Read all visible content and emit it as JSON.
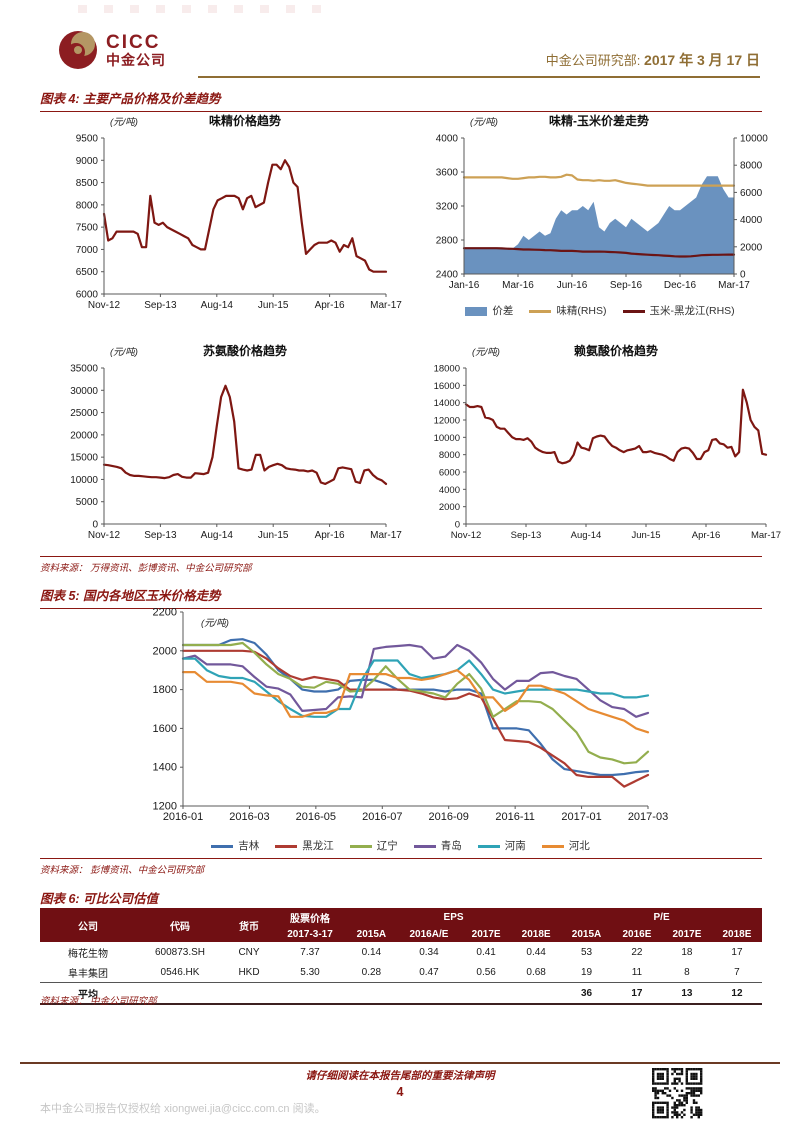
{
  "header": {
    "logo_en": "CICC",
    "logo_cn": "中金公司",
    "dept_label": "中金公司研究部:",
    "date": "2017 年 3 月 17 日"
  },
  "figure4": {
    "title": "图表 4: 主要产品价格及价差趋势",
    "source": "资料来源： 万得资讯、彭博资讯、中金公司研究部",
    "charts": [
      {
        "id": "msg-price",
        "title": "味精价格趋势",
        "unit": "(元/吨)",
        "ylim": [
          6000,
          9500
        ],
        "ystep": 500,
        "xticklabels": [
          "Nov-12",
          "Sep-13",
          "Aug-14",
          "Jun-15",
          "Apr-16",
          "Mar-17"
        ],
        "series": [
          {
            "name": "味精价格",
            "type": "line",
            "axis": "left",
            "color": "#7e1712",
            "values": [
              7800,
              7200,
              7250,
              7400,
              7400,
              7400,
              7400,
              7400,
              7350,
              7050,
              7050,
              8200,
              7600,
              7550,
              7600,
              7500,
              7450,
              7400,
              7350,
              7300,
              7250,
              7100,
              7050,
              7000,
              7000,
              7450,
              7900,
              8100,
              8150,
              8200,
              8200,
              8200,
              8150,
              7900,
              8150,
              8200,
              7950,
              8000,
              8050,
              8500,
              8900,
              8900,
              8800,
              9000,
              8850,
              8500,
              8400,
              7600,
              6900,
              7000,
              7100,
              7150,
              7150,
              7150,
              7200,
              7150,
              6950,
              7100,
              7050,
              7250,
              6850,
              6800,
              6750,
              6550,
              6500,
              6500,
              6500,
              6500
            ]
          }
        ]
      },
      {
        "id": "msg-corn-spread",
        "title": "味精-玉米价差走势",
        "unit": "(元/吨)",
        "ylim": [
          2400,
          4000
        ],
        "ystep": 400,
        "y2lim": [
          0,
          10000
        ],
        "y2step": 2000,
        "xticklabels": [
          "Jan-16",
          "Mar-16",
          "Jun-16",
          "Sep-16",
          "Dec-16",
          "Mar-17"
        ],
        "series": [
          {
            "name": "价差",
            "type": "area",
            "axis": "left",
            "color": "#6a92bf",
            "values": [
              2700,
              2700,
              2700,
              2700,
              2700,
              2700,
              2700,
              2700,
              2700,
              2700,
              2750,
              2850,
              2800,
              2850,
              2900,
              2850,
              2880,
              3050,
              3150,
              3100,
              3150,
              3150,
              3200,
              3150,
              3250,
              2950,
              2900,
              3000,
              3050,
              3000,
              2950,
              3050,
              3000,
              2950,
              2900,
              2950,
              3000,
              3100,
              3200,
              3150,
              3150,
              3200,
              3250,
              3300,
              3450,
              3550,
              3550,
              3550,
              3400,
              3300,
              3300
            ]
          },
          {
            "name": "味精(RHS)",
            "type": "line",
            "axis": "right",
            "color": "#cda155",
            "values": [
              7100,
              7100,
              7100,
              7100,
              7100,
              7100,
              7100,
              7100,
              7050,
              7000,
              7000,
              7050,
              7100,
              7100,
              7150,
              7150,
              7100,
              7100,
              7150,
              7300,
              7250,
              6950,
              6900,
              6900,
              6850,
              6900,
              6850,
              6850,
              6900,
              6800,
              6700,
              6650,
              6600,
              6550,
              6500,
              6500,
              6500,
              6500,
              6500,
              6500,
              6500,
              6500,
              6500,
              6500,
              6500,
              6500,
              6500,
              6500,
              6500,
              6500,
              6500
            ]
          },
          {
            "name": "玉米-黑龙江(RHS)",
            "type": "line",
            "axis": "right",
            "color": "#6b1414",
            "values": [
              1900,
              1900,
              1900,
              1900,
              1900,
              1900,
              1900,
              1880,
              1860,
              1850,
              1830,
              1800,
              1800,
              1790,
              1780,
              1760,
              1750,
              1730,
              1700,
              1700,
              1700,
              1680,
              1650,
              1650,
              1650,
              1650,
              1640,
              1620,
              1600,
              1580,
              1550,
              1500,
              1470,
              1440,
              1420,
              1400,
              1380,
              1350,
              1330,
              1300,
              1290,
              1290,
              1300,
              1340,
              1380,
              1400,
              1410,
              1410,
              1420,
              1430,
              1430
            ]
          }
        ]
      },
      {
        "id": "threonine-price",
        "title": "苏氨酸价格趋势",
        "unit": "(元/吨)",
        "ylim": [
          0,
          35000
        ],
        "ystep": 5000,
        "xticklabels": [
          "Nov-12",
          "Sep-13",
          "Aug-14",
          "Jun-15",
          "Apr-16",
          "Mar-17"
        ],
        "series": [
          {
            "name": "苏氨酸价格",
            "type": "line",
            "axis": "left",
            "color": "#7e1712",
            "values": [
              13300,
              13200,
              13000,
              12800,
              12500,
              11500,
              11000,
              10800,
              10800,
              10700,
              10600,
              10500,
              10500,
              10400,
              10300,
              10500,
              11000,
              11200,
              10600,
              10400,
              10400,
              11400,
              11300,
              11200,
              11500,
              15000,
              22000,
              28500,
              31000,
              28500,
              23000,
              12500,
              12200,
              12000,
              12200,
              15500,
              15500,
              12000,
              12800,
              13200,
              13500,
              13200,
              12500,
              12300,
              12200,
              12000,
              12000,
              11800,
              12000,
              11500,
              9300,
              9000,
              9500,
              10000,
              12500,
              12700,
              12500,
              12300,
              9500,
              9200,
              12000,
              12200,
              11000,
              10200,
              9800,
              9000
            ]
          }
        ]
      },
      {
        "id": "lysine-price",
        "title": "赖氨酸价格趋势",
        "unit": "(元/吨)",
        "ylim": [
          0,
          18000
        ],
        "ystep": 2000,
        "xticklabels": [
          "Nov-12",
          "Sep-13",
          "Aug-14",
          "Jun-15",
          "Apr-16",
          "Mar-17"
        ],
        "series": [
          {
            "name": "赖氨酸价格",
            "type": "line",
            "axis": "left",
            "color": "#7e1712",
            "values": [
              13800,
              13500,
              13500,
              13600,
              13500,
              12300,
              12200,
              12000,
              11200,
              11000,
              11000,
              10500,
              10000,
              9800,
              9800,
              9700,
              9900,
              9500,
              8800,
              8500,
              8300,
              8200,
              8200,
              8300,
              7200,
              7000,
              7100,
              7300,
              8000,
              9400,
              8800,
              8700,
              8500,
              9900,
              10100,
              10200,
              10100,
              9500,
              9000,
              8800,
              8500,
              8300,
              8500,
              8600,
              8700,
              9000,
              8300,
              8300,
              8400,
              8200,
              8100,
              8000,
              7800,
              7500,
              7300,
              8300,
              8700,
              8800,
              8700,
              8200,
              7500,
              7500,
              8300,
              8500,
              9700,
              9800,
              9300,
              9200,
              8800,
              8900,
              7800,
              8300,
              15500,
              14000,
              12000,
              11200,
              10800,
              8100,
              8000
            ]
          }
        ]
      }
    ]
  },
  "figure5": {
    "title": "图表 5: 国内各地区玉米价格走势",
    "source": "资料来源： 彭博资讯、中金公司研究部",
    "chart": {
      "id": "regional-corn-price",
      "unit": "(元/吨)",
      "ylim": [
        1200,
        2200
      ],
      "ystep": 200,
      "xticklabels": [
        "2016-01",
        "2016-03",
        "2016-05",
        "2016-07",
        "2016-09",
        "2016-11",
        "2017-01",
        "2017-03"
      ],
      "series": [
        {
          "name": "吉林",
          "type": "line",
          "axis": "left",
          "color": "#3f6fae",
          "values": [
            2030,
            2030,
            2030,
            2030,
            2055,
            2060,
            2040,
            1980,
            1900,
            1855,
            1800,
            1790,
            1790,
            1800,
            1845,
            1850,
            1850,
            1830,
            1800,
            1800,
            1800,
            1800,
            1790,
            1800,
            1800,
            1780,
            1600,
            1600,
            1600,
            1590,
            1520,
            1440,
            1390,
            1380,
            1370,
            1360,
            1360,
            1365,
            1375,
            1380
          ]
        },
        {
          "name": "黑龙江",
          "type": "line",
          "axis": "left",
          "color": "#ae3b32",
          "values": [
            2000,
            2000,
            2000,
            2000,
            2000,
            2000,
            1995,
            1960,
            1910,
            1870,
            1850,
            1865,
            1855,
            1845,
            1800,
            1800,
            1800,
            1800,
            1800,
            1795,
            1780,
            1760,
            1750,
            1755,
            1780,
            1760,
            1650,
            1540,
            1535,
            1530,
            1500,
            1460,
            1420,
            1360,
            1350,
            1350,
            1350,
            1300,
            1330,
            1360
          ]
        },
        {
          "name": "辽宁",
          "type": "line",
          "axis": "left",
          "color": "#93ae4e",
          "values": [
            2030,
            2030,
            2030,
            2030,
            2030,
            2040,
            1990,
            1930,
            1880,
            1855,
            1815,
            1810,
            1840,
            1830,
            1790,
            1795,
            1850,
            1920,
            1855,
            1800,
            1790,
            1780,
            1760,
            1830,
            1880,
            1805,
            1660,
            1700,
            1740,
            1740,
            1735,
            1700,
            1640,
            1580,
            1480,
            1450,
            1440,
            1420,
            1425,
            1480
          ]
        },
        {
          "name": "青岛",
          "type": "line",
          "axis": "left",
          "color": "#72589b",
          "values": [
            1960,
            1975,
            1930,
            1930,
            1930,
            1920,
            1865,
            1815,
            1805,
            1775,
            1690,
            1695,
            1700,
            1760,
            1765,
            1760,
            2010,
            2020,
            2025,
            2030,
            2020,
            1960,
            1970,
            2030,
            2000,
            1940,
            1855,
            1800,
            1845,
            1845,
            1885,
            1890,
            1870,
            1855,
            1800,
            1745,
            1710,
            1700,
            1660,
            1680
          ]
        },
        {
          "name": "河南",
          "type": "line",
          "axis": "left",
          "color": "#2fa3b6",
          "values": [
            1960,
            1960,
            1900,
            1870,
            1860,
            1860,
            1840,
            1790,
            1740,
            1700,
            1665,
            1660,
            1660,
            1700,
            1700,
            1850,
            1950,
            1950,
            1950,
            1880,
            1860,
            1870,
            1880,
            1900,
            1950,
            1880,
            1800,
            1780,
            1790,
            1800,
            1800,
            1800,
            1800,
            1800,
            1790,
            1780,
            1780,
            1760,
            1760,
            1770
          ]
        },
        {
          "name": "河北",
          "type": "line",
          "axis": "left",
          "color": "#e78b33",
          "values": [
            1890,
            1890,
            1840,
            1840,
            1840,
            1830,
            1780,
            1770,
            1765,
            1660,
            1660,
            1680,
            1680,
            1700,
            1880,
            1880,
            1880,
            1880,
            1860,
            1860,
            1850,
            1860,
            1880,
            1900,
            1850,
            1760,
            1760,
            1690,
            1730,
            1820,
            1820,
            1800,
            1780,
            1740,
            1700,
            1680,
            1660,
            1640,
            1600,
            1580
          ]
        }
      ]
    }
  },
  "figure6": {
    "title": "图表 6: 可比公司估值",
    "source": "资料来源： 中金公司研究部",
    "table": {
      "col_company": "公司",
      "col_code": "代码",
      "col_currency": "货币",
      "col_price_group": "股票价格",
      "col_eps_group": "EPS",
      "col_pe_group": "P/E",
      "sub_headers": [
        "2017-3-17",
        "2015A",
        "2016A/E",
        "2017E",
        "2018E",
        "2015A",
        "2016E",
        "2017E",
        "2018E"
      ],
      "rows": [
        [
          "梅花生物",
          "600873.SH",
          "CNY",
          "7.37",
          "0.14",
          "0.34",
          "0.41",
          "0.44",
          "53",
          "22",
          "18",
          "17"
        ],
        [
          "阜丰集团",
          "0546.HK",
          "HKD",
          "5.30",
          "0.28",
          "0.47",
          "0.56",
          "0.68",
          "19",
          "11",
          "8",
          "7"
        ]
      ],
      "avg_row": [
        "平均",
        "",
        "",
        "",
        "",
        "",
        "",
        "",
        "36",
        "17",
        "13",
        "12"
      ]
    }
  },
  "footer": {
    "disclaimer": "请仔细阅读在本报告尾部的重要法律声明",
    "page_number": "4",
    "license": "本中金公司报告仅授权给 xiongwei.jia@cicc.com.cn 阅读。"
  },
  "colors": {
    "brand_red": "#8c1d21",
    "rule_red": "#8b1712",
    "gold": "#8f6e34",
    "table_header_bg": "#700f13"
  }
}
